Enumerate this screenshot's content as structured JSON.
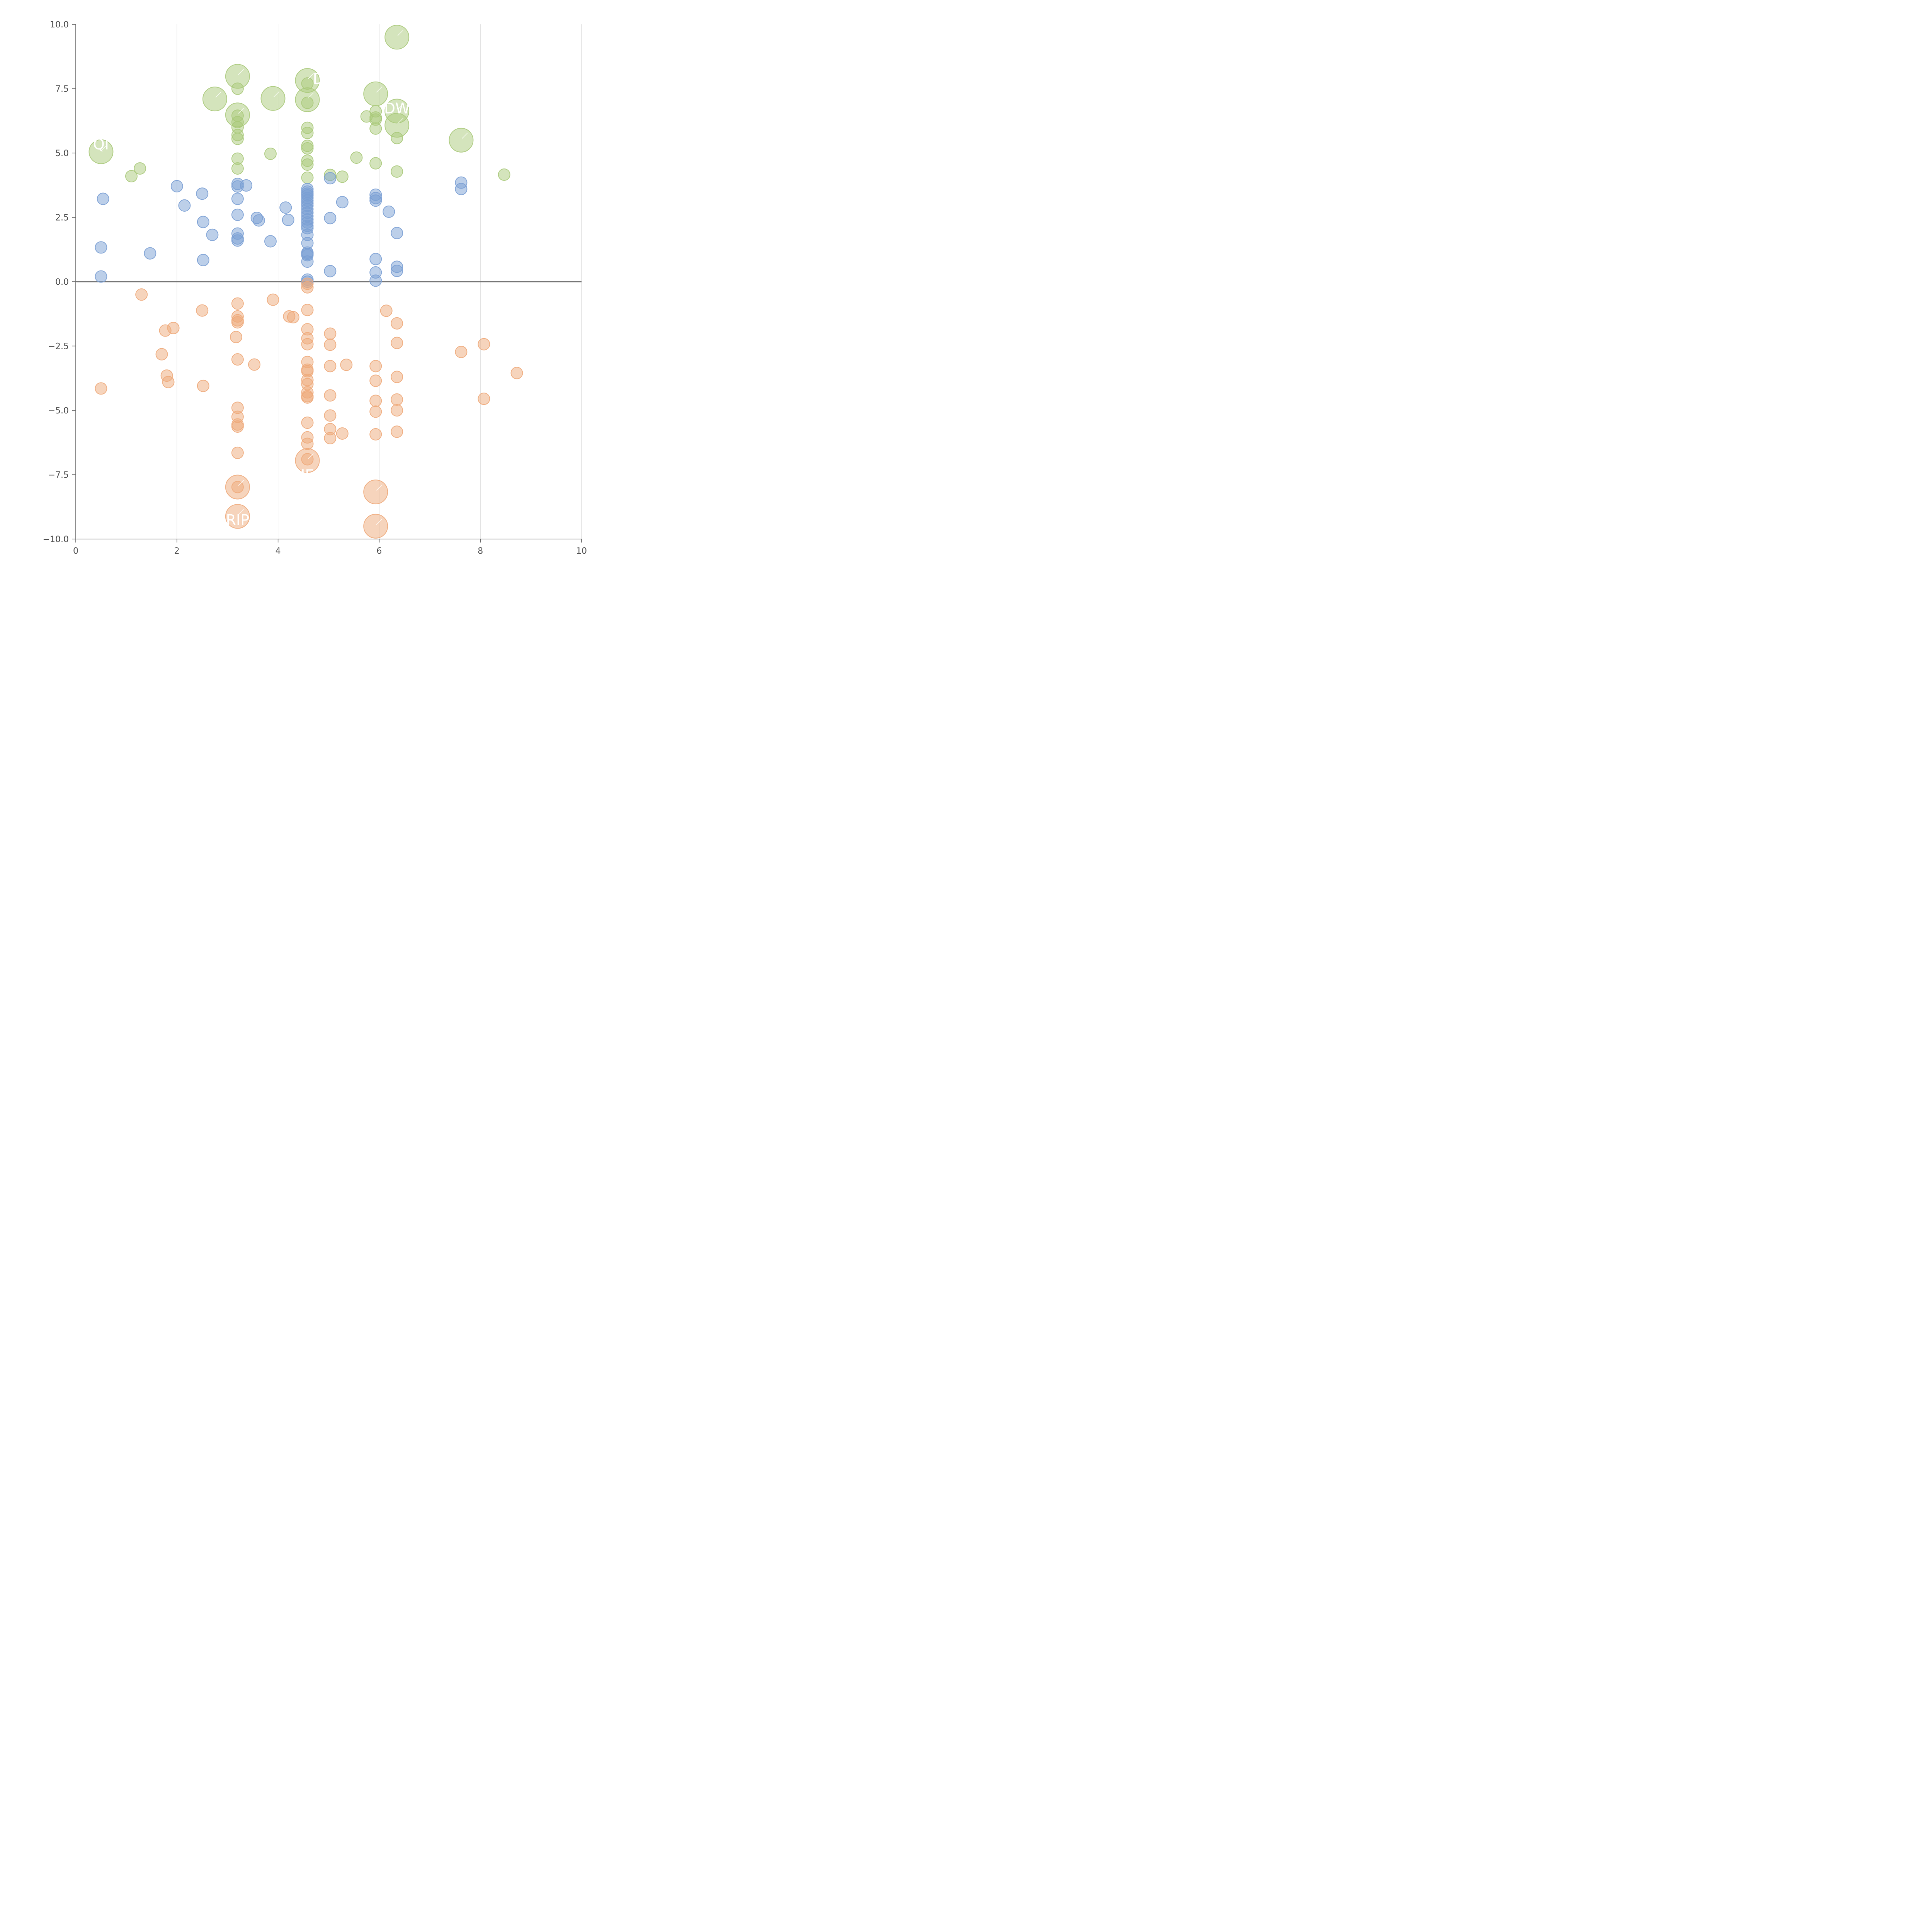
{
  "chart_data": {
    "type": "scatter",
    "xlim": [
      0,
      10
    ],
    "ylim": [
      -10,
      10
    ],
    "x_ticks": [
      "0",
      "2",
      "4",
      "6",
      "8",
      "10"
    ],
    "y_ticks": [
      "10.0",
      "7.5",
      "5.0",
      "2.5",
      "0.0",
      "−2.5",
      "−5.0",
      "−7.5",
      "−10.0"
    ],
    "x_tick_values": [
      0,
      2,
      4,
      6,
      8,
      10
    ],
    "y_tick_values": [
      10,
      7.5,
      5,
      2.5,
      0,
      -2.5,
      -5,
      -7.5,
      -10
    ],
    "grid": "vertical",
    "zero_line": true,
    "colors": {
      "green": "#a9c97a",
      "blue": "#7a9fd4",
      "orange": "#eea97a"
    },
    "series": [
      {
        "color_key": "green",
        "points": [
          [
            0.5,
            5.05,
            2
          ],
          [
            1.1,
            4.1,
            1
          ],
          [
            1.27,
            4.4,
            1
          ],
          [
            2.75,
            7.1,
            2
          ],
          [
            3.2,
            7.98,
            2
          ],
          [
            3.2,
            7.5,
            1
          ],
          [
            3.2,
            6.48,
            2
          ],
          [
            3.2,
            6.45,
            1
          ],
          [
            3.2,
            6.2,
            1
          ],
          [
            3.2,
            6.0,
            1
          ],
          [
            3.2,
            5.7,
            1
          ],
          [
            3.2,
            5.55,
            1
          ],
          [
            3.2,
            4.78,
            1
          ],
          [
            3.2,
            4.4,
            1
          ],
          [
            3.85,
            4.97,
            1
          ],
          [
            3.9,
            7.12,
            2
          ],
          [
            4.58,
            7.82,
            2
          ],
          [
            4.58,
            7.7,
            1
          ],
          [
            4.58,
            7.07,
            2
          ],
          [
            4.58,
            6.95,
            1
          ],
          [
            4.58,
            5.98,
            1
          ],
          [
            4.58,
            5.78,
            1
          ],
          [
            4.58,
            5.28,
            1
          ],
          [
            4.58,
            5.18,
            1
          ],
          [
            4.58,
            4.7,
            1
          ],
          [
            4.58,
            4.55,
            1
          ],
          [
            4.58,
            4.04,
            1
          ],
          [
            5.03,
            4.15,
            1
          ],
          [
            5.27,
            4.08,
            1
          ],
          [
            5.55,
            4.82,
            1
          ],
          [
            5.75,
            6.42,
            1
          ],
          [
            5.93,
            7.3,
            2
          ],
          [
            5.93,
            6.62,
            1
          ],
          [
            5.93,
            6.38,
            1
          ],
          [
            5.93,
            6.3,
            1
          ],
          [
            5.93,
            5.95,
            1
          ],
          [
            5.93,
            4.6,
            1
          ],
          [
            6.35,
            9.5,
            2
          ],
          [
            6.35,
            6.63,
            2
          ],
          [
            6.35,
            6.08,
            2
          ],
          [
            6.35,
            5.58,
            1
          ],
          [
            6.35,
            4.28,
            1
          ],
          [
            7.62,
            5.5,
            2
          ],
          [
            8.47,
            4.16,
            1
          ]
        ]
      },
      {
        "color_key": "blue",
        "points": [
          [
            0.5,
            1.33,
            1
          ],
          [
            0.5,
            0.2,
            1
          ],
          [
            0.54,
            3.22,
            1
          ],
          [
            1.47,
            1.1,
            1
          ],
          [
            2.0,
            3.71,
            1
          ],
          [
            2.15,
            2.96,
            1
          ],
          [
            2.5,
            3.42,
            1
          ],
          [
            2.52,
            2.32,
            1
          ],
          [
            2.52,
            0.84,
            1
          ],
          [
            2.7,
            1.82,
            1
          ],
          [
            3.2,
            3.8,
            1
          ],
          [
            3.2,
            3.7,
            1
          ],
          [
            3.2,
            3.22,
            1
          ],
          [
            3.2,
            2.6,
            1
          ],
          [
            3.2,
            1.87,
            1
          ],
          [
            3.2,
            1.68,
            1
          ],
          [
            3.2,
            1.6,
            1
          ],
          [
            3.37,
            3.74,
            1
          ],
          [
            3.58,
            2.48,
            1
          ],
          [
            3.62,
            2.38,
            1
          ],
          [
            3.85,
            1.57,
            1
          ],
          [
            4.15,
            2.88,
            1
          ],
          [
            4.2,
            2.4,
            1
          ],
          [
            4.58,
            3.6,
            1
          ],
          [
            4.58,
            3.5,
            1
          ],
          [
            4.58,
            3.42,
            1
          ],
          [
            4.58,
            3.35,
            1
          ],
          [
            4.58,
            3.25,
            1
          ],
          [
            4.58,
            3.15,
            1
          ],
          [
            4.58,
            3.05,
            1
          ],
          [
            4.58,
            2.95,
            1
          ],
          [
            4.58,
            2.82,
            1
          ],
          [
            4.58,
            2.68,
            1
          ],
          [
            4.58,
            2.55,
            1
          ],
          [
            4.58,
            2.42,
            1
          ],
          [
            4.58,
            2.3,
            1
          ],
          [
            4.58,
            2.17,
            1
          ],
          [
            4.58,
            2.08,
            1
          ],
          [
            4.58,
            1.82,
            1
          ],
          [
            4.58,
            1.5,
            1
          ],
          [
            4.58,
            1.13,
            1
          ],
          [
            4.58,
            1.08,
            1
          ],
          [
            4.58,
            1.03,
            1
          ],
          [
            4.58,
            0.78,
            1
          ],
          [
            4.58,
            0.08,
            1
          ],
          [
            4.58,
            0.0,
            1
          ],
          [
            5.03,
            4.02,
            1
          ],
          [
            5.03,
            2.47,
            1
          ],
          [
            5.03,
            0.41,
            1
          ],
          [
            5.27,
            3.09,
            1
          ],
          [
            5.93,
            3.38,
            1
          ],
          [
            5.93,
            3.25,
            1
          ],
          [
            5.93,
            3.15,
            1
          ],
          [
            5.93,
            0.88,
            1
          ],
          [
            5.93,
            0.36,
            1
          ],
          [
            5.93,
            0.04,
            1
          ],
          [
            6.19,
            2.72,
            1
          ],
          [
            6.35,
            1.89,
            1
          ],
          [
            6.35,
            0.58,
            1
          ],
          [
            6.35,
            0.42,
            1
          ],
          [
            7.62,
            3.85,
            1
          ],
          [
            7.62,
            3.6,
            1
          ]
        ]
      },
      {
        "color_key": "orange",
        "points": [
          [
            0.5,
            -4.15,
            1
          ],
          [
            1.3,
            -0.5,
            1
          ],
          [
            1.7,
            -2.82,
            1
          ],
          [
            1.77,
            -1.9,
            1
          ],
          [
            1.8,
            -3.65,
            1
          ],
          [
            1.83,
            -3.9,
            1
          ],
          [
            1.93,
            -1.8,
            1
          ],
          [
            2.5,
            -1.12,
            1
          ],
          [
            2.52,
            -4.05,
            1
          ],
          [
            3.2,
            -0.85,
            1
          ],
          [
            3.2,
            -1.35,
            1
          ],
          [
            3.2,
            -1.5,
            1
          ],
          [
            3.2,
            -1.58,
            1
          ],
          [
            3.17,
            -2.15,
            1
          ],
          [
            3.2,
            -3.02,
            1
          ],
          [
            3.2,
            -4.9,
            1
          ],
          [
            3.2,
            -5.25,
            1
          ],
          [
            3.2,
            -5.55,
            1
          ],
          [
            3.2,
            -5.63,
            1
          ],
          [
            3.2,
            -6.65,
            1
          ],
          [
            3.2,
            -7.98,
            2
          ],
          [
            3.2,
            -7.98,
            1
          ],
          [
            3.2,
            -9.12,
            2
          ],
          [
            3.53,
            -3.22,
            1
          ],
          [
            3.9,
            -0.7,
            1
          ],
          [
            4.22,
            -1.35,
            1
          ],
          [
            4.3,
            -1.38,
            1
          ],
          [
            4.58,
            -0.08,
            1
          ],
          [
            4.58,
            -0.22,
            1
          ],
          [
            4.58,
            -1.1,
            1
          ],
          [
            4.58,
            -1.85,
            1
          ],
          [
            4.58,
            -2.2,
            1
          ],
          [
            4.58,
            -2.43,
            1
          ],
          [
            4.58,
            -3.12,
            1
          ],
          [
            4.58,
            -3.42,
            1
          ],
          [
            4.58,
            -3.48,
            1
          ],
          [
            4.58,
            -3.82,
            1
          ],
          [
            4.58,
            -3.98,
            1
          ],
          [
            4.58,
            -4.3,
            1
          ],
          [
            4.58,
            -4.45,
            1
          ],
          [
            4.58,
            -4.5,
            1
          ],
          [
            4.58,
            -5.48,
            1
          ],
          [
            4.58,
            -6.05,
            1
          ],
          [
            4.58,
            -6.3,
            1
          ],
          [
            4.58,
            -6.95,
            2
          ],
          [
            4.58,
            -6.9,
            1
          ],
          [
            5.03,
            -2.02,
            1
          ],
          [
            5.03,
            -2.45,
            1
          ],
          [
            5.03,
            -3.28,
            1
          ],
          [
            5.03,
            -4.42,
            1
          ],
          [
            5.03,
            -5.2,
            1
          ],
          [
            5.03,
            -5.73,
            1
          ],
          [
            5.03,
            -6.08,
            1
          ],
          [
            5.27,
            -5.9,
            1
          ],
          [
            5.35,
            -3.23,
            1
          ],
          [
            5.93,
            -3.28,
            1
          ],
          [
            5.93,
            -3.85,
            1
          ],
          [
            5.93,
            -4.63,
            1
          ],
          [
            5.93,
            -5.05,
            1
          ],
          [
            5.93,
            -5.93,
            1
          ],
          [
            5.93,
            -8.17,
            2
          ],
          [
            5.93,
            -9.5,
            2
          ],
          [
            6.14,
            -1.13,
            1
          ],
          [
            6.35,
            -1.62,
            1
          ],
          [
            6.35,
            -2.38,
            1
          ],
          [
            6.35,
            -3.7,
            1
          ],
          [
            6.35,
            -4.58,
            1
          ],
          [
            6.35,
            -5.0,
            1
          ],
          [
            6.35,
            -5.83,
            1
          ],
          [
            7.62,
            -2.73,
            1
          ],
          [
            8.07,
            -2.43,
            1
          ],
          [
            8.07,
            -4.55,
            1
          ],
          [
            8.72,
            -3.55,
            1
          ]
        ]
      }
    ],
    "labels": [
      {
        "text": "QI",
        "x": 0.5,
        "y": 5.35
      },
      {
        "text": "D",
        "x": 4.8,
        "y": 7.9
      },
      {
        "text": "DW",
        "x": 6.35,
        "y": 6.75
      },
      {
        "text": "I",
        "x": 6.62,
        "y": 5.55
      },
      {
        "text": "NEF",
        "x": 4.6,
        "y": -7.5
      },
      {
        "text": "RIP",
        "x": 3.2,
        "y": -9.25
      }
    ]
  }
}
